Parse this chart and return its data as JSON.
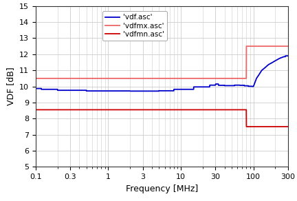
{
  "xlabel": "Frequency [MHz]",
  "ylabel": "VDF [dB]",
  "xlim": [
    0.1,
    300
  ],
  "ylim": [
    5,
    15
  ],
  "yticks": [
    5,
    6,
    7,
    8,
    9,
    10,
    11,
    12,
    13,
    14,
    15
  ],
  "legend": [
    "'vdf.asc'",
    "'vdfmx.asc'",
    "'vdfmn.asc'"
  ],
  "vdf_color": "#0000cc",
  "vdfmx_color": "#ee6666",
  "vdfmn_color": "#cc0000",
  "background_color": "#ffffff",
  "grid_color": "#cccccc",
  "x_major_ticks": [
    0.1,
    0.3,
    1,
    3,
    10,
    30,
    100,
    300
  ],
  "x_major_labels": [
    "0.1",
    "0.3",
    "1",
    "3",
    "10",
    "30",
    "100",
    "300"
  ],
  "vdfmx_flat": 10.5,
  "vdfmx_high": 12.5,
  "vdfmn_flat": 8.55,
  "vdfmn_low": 7.5,
  "step_freq": 80.0,
  "vdf_rise_start": 100.0,
  "vdf_end": 11.9
}
